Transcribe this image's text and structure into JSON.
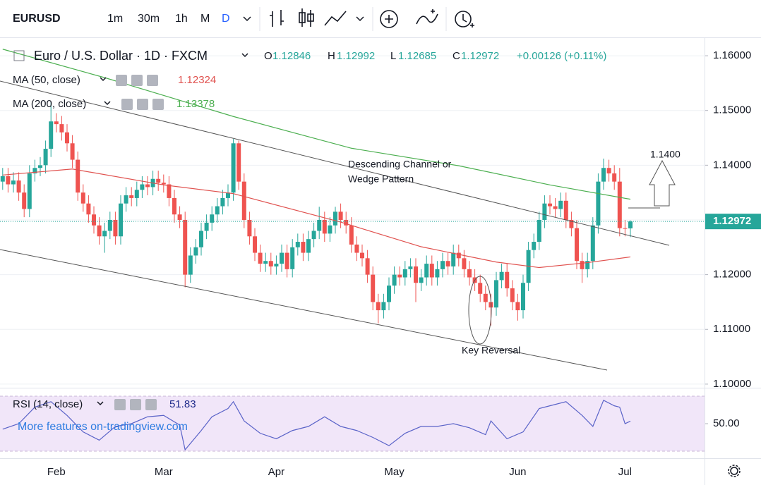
{
  "toolbar": {
    "symbol": "EURUSD",
    "intervals": [
      "1m",
      "30m",
      "1h",
      "M",
      "D"
    ]
  },
  "watermark": "More features on-tradingview.com",
  "chart_data": [
    {
      "type": "candlestick",
      "header": {
        "title": "Euro / U.S. Dollar · 1D · FXCM",
        "ohlc_labels": [
          "O",
          "H",
          "L",
          "C"
        ],
        "change": "+0.00126 (+0.11%)"
      },
      "categories": [
        null,
        null,
        null,
        null,
        null,
        null,
        null,
        null,
        null,
        null,
        "Feb",
        null,
        null,
        null,
        null,
        null,
        null,
        null,
        null,
        null,
        null,
        null,
        null,
        null,
        null,
        null,
        null,
        null,
        null,
        null,
        "Mar",
        null,
        null,
        null,
        null,
        null,
        null,
        null,
        null,
        null,
        null,
        null,
        null,
        null,
        null,
        null,
        null,
        null,
        null,
        null,
        null,
        "Apr",
        null,
        null,
        null,
        null,
        null,
        null,
        null,
        null,
        null,
        null,
        null,
        null,
        null,
        null,
        null,
        null,
        null,
        null,
        null,
        null,
        null,
        "May",
        null,
        null,
        null,
        null,
        null,
        null,
        null,
        null,
        null,
        null,
        null,
        null,
        null,
        null,
        null,
        null,
        null,
        null,
        null,
        null,
        null,
        null,
        "Jun",
        null,
        null,
        null,
        null,
        null,
        null,
        null,
        null,
        null,
        null,
        null,
        null,
        null,
        null,
        null,
        null,
        null,
        null,
        null,
        "Jul",
        null
      ],
      "open": [
        1.137,
        1.138,
        1.1365,
        1.1372,
        1.135,
        1.132,
        1.1385,
        1.1395,
        1.14,
        1.143,
        1.148,
        1.1475,
        1.146,
        1.144,
        1.141,
        1.135,
        1.133,
        1.131,
        1.129,
        1.127,
        1.128,
        1.13,
        1.127,
        1.133,
        1.1345,
        1.134,
        1.1355,
        1.1365,
        1.136,
        1.1375,
        1.1368,
        1.1365,
        1.134,
        1.131,
        1.13,
        1.12,
        1.1235,
        1.125,
        1.128,
        1.1295,
        1.131,
        1.1325,
        1.134,
        1.135,
        1.144,
        1.137,
        1.13,
        1.127,
        1.124,
        1.122,
        1.1225,
        1.1215,
        1.122,
        1.124,
        1.121,
        1.125,
        1.126,
        1.124,
        1.1265,
        1.128,
        1.13,
        1.1275,
        1.129,
        1.1315,
        1.13,
        1.129,
        1.1255,
        1.124,
        1.123,
        1.12,
        1.115,
        1.1135,
        1.115,
        1.118,
        1.12,
        1.1195,
        1.121,
        1.1215,
        1.1185,
        1.1195,
        1.122,
        1.1195,
        1.121,
        1.1225,
        1.1215,
        1.124,
        1.123,
        1.121,
        1.1195,
        1.1185,
        1.1165,
        1.115,
        1.114,
        1.119,
        1.1205,
        1.1175,
        1.115,
        1.1135,
        1.1185,
        1.1245,
        1.126,
        1.13,
        1.133,
        1.1325,
        1.132,
        1.1335,
        1.13,
        1.1285,
        1.1225,
        1.121,
        1.1225,
        1.129,
        1.137,
        1.1395,
        1.1385,
        1.137,
        1.1285,
        1.12846
      ],
      "high": [
        1.1395,
        1.1395,
        1.1387,
        1.1387,
        1.1365,
        1.14,
        1.141,
        1.1415,
        1.1445,
        1.1515,
        1.1495,
        1.149,
        1.1475,
        1.1455,
        1.1425,
        1.1365,
        1.1345,
        1.1325,
        1.1305,
        1.1295,
        1.1315,
        1.1315,
        1.1345,
        1.136,
        1.136,
        1.137,
        1.138,
        1.138,
        1.139,
        1.139,
        1.1383,
        1.138,
        1.1355,
        1.1325,
        1.1315,
        1.125,
        1.1265,
        1.1295,
        1.131,
        1.1325,
        1.134,
        1.1355,
        1.1365,
        1.1448,
        1.1445,
        1.1385,
        1.1315,
        1.1285,
        1.1255,
        1.124,
        1.124,
        1.1235,
        1.1255,
        1.1255,
        1.1265,
        1.1275,
        1.1275,
        1.128,
        1.1295,
        1.1324,
        1.1315,
        1.1305,
        1.1324,
        1.133,
        1.1315,
        1.1305,
        1.127,
        1.1255,
        1.1245,
        1.1215,
        1.1165,
        1.1165,
        1.1195,
        1.1215,
        1.1215,
        1.1225,
        1.123,
        1.123,
        1.121,
        1.1235,
        1.1235,
        1.1225,
        1.124,
        1.124,
        1.1255,
        1.1255,
        1.1245,
        1.1225,
        1.121,
        1.12,
        1.118,
        1.1165,
        1.1205,
        1.122,
        1.122,
        1.119,
        1.1165,
        1.12,
        1.126,
        1.1275,
        1.1315,
        1.1345,
        1.1345,
        1.134,
        1.135,
        1.135,
        1.1315,
        1.13,
        1.124,
        1.124,
        1.1305,
        1.1385,
        1.1412,
        1.141,
        1.14,
        1.1395,
        1.13,
        1.12992
      ],
      "low": [
        1.1355,
        1.135,
        1.135,
        1.1335,
        1.1305,
        1.1305,
        1.137,
        1.138,
        1.1385,
        1.1415,
        1.146,
        1.1445,
        1.1425,
        1.1395,
        1.1335,
        1.1315,
        1.1295,
        1.1275,
        1.1255,
        1.124,
        1.1265,
        1.1255,
        1.1255,
        1.1315,
        1.1325,
        1.1325,
        1.134,
        1.1345,
        1.1345,
        1.1353,
        1.135,
        1.1325,
        1.1295,
        1.1285,
        1.1177,
        1.1185,
        1.122,
        1.1235,
        1.1265,
        1.128,
        1.1295,
        1.131,
        1.1325,
        1.1335,
        1.1355,
        1.1285,
        1.1255,
        1.1225,
        1.1205,
        1.1205,
        1.12,
        1.12,
        1.1205,
        1.1195,
        1.1195,
        1.1235,
        1.1225,
        1.1225,
        1.125,
        1.1265,
        1.126,
        1.126,
        1.1275,
        1.1285,
        1.1275,
        1.124,
        1.1225,
        1.1215,
        1.1185,
        1.1135,
        1.1111,
        1.112,
        1.1135,
        1.1165,
        1.118,
        1.118,
        1.1195,
        1.115,
        1.117,
        1.118,
        1.118,
        1.118,
        1.1195,
        1.12,
        1.12,
        1.1215,
        1.1195,
        1.118,
        1.117,
        1.115,
        1.1135,
        1.1107,
        1.1125,
        1.1175,
        1.116,
        1.1135,
        1.1116,
        1.112,
        1.117,
        1.123,
        1.1245,
        1.1285,
        1.131,
        1.1305,
        1.1305,
        1.1285,
        1.127,
        1.121,
        1.1185,
        1.1195,
        1.121,
        1.1275,
        1.1355,
        1.137,
        1.1355,
        1.127,
        1.127,
        1.12685
      ],
      "close": [
        1.138,
        1.1365,
        1.1372,
        1.135,
        1.132,
        1.1385,
        1.1395,
        1.14,
        1.143,
        1.148,
        1.1475,
        1.146,
        1.144,
        1.141,
        1.135,
        1.133,
        1.131,
        1.129,
        1.127,
        1.128,
        1.13,
        1.127,
        1.133,
        1.1345,
        1.134,
        1.1355,
        1.1365,
        1.136,
        1.1375,
        1.1368,
        1.1365,
        1.134,
        1.131,
        1.13,
        1.12,
        1.1235,
        1.125,
        1.128,
        1.1295,
        1.131,
        1.1325,
        1.134,
        1.135,
        1.144,
        1.137,
        1.13,
        1.127,
        1.124,
        1.122,
        1.1225,
        1.1215,
        1.122,
        1.124,
        1.121,
        1.125,
        1.126,
        1.124,
        1.1265,
        1.128,
        1.13,
        1.1275,
        1.129,
        1.1315,
        1.13,
        1.129,
        1.1255,
        1.124,
        1.123,
        1.12,
        1.115,
        1.1135,
        1.115,
        1.118,
        1.12,
        1.1195,
        1.121,
        1.1215,
        1.1185,
        1.1195,
        1.122,
        1.1195,
        1.121,
        1.1225,
        1.1215,
        1.124,
        1.123,
        1.121,
        1.1195,
        1.1185,
        1.1165,
        1.115,
        1.114,
        1.119,
        1.1205,
        1.1175,
        1.115,
        1.1135,
        1.1185,
        1.1245,
        1.126,
        1.13,
        1.133,
        1.1325,
        1.132,
        1.1335,
        1.13,
        1.1285,
        1.1225,
        1.121,
        1.1225,
        1.129,
        1.137,
        1.1395,
        1.1385,
        1.137,
        1.1285,
        1.12846,
        1.12972
      ],
      "up_color": "#26a69a",
      "down_color": "#ef5350",
      "ma": [
        {
          "name": "MA (50, close)",
          "color": "#e0524f",
          "x": [
            0,
            13,
            30,
            43,
            63,
            78,
            92,
            100,
            109,
            117
          ],
          "values": [
            1.1382,
            1.1393,
            1.1364,
            1.1348,
            1.1296,
            1.1251,
            1.1223,
            1.1213,
            1.1222,
            1.12324
          ]
        },
        {
          "name": "MA (200, close)",
          "color": "#4caf50",
          "x": [
            0,
            19,
            43,
            65,
            85,
            102,
            117
          ],
          "values": [
            1.1612,
            1.156,
            1.1489,
            1.1431,
            1.1399,
            1.1364,
            1.13378
          ]
        }
      ],
      "ylim": [
        1.0996,
        1.1631
      ],
      "yticks": [
        {
          "value": 1.1,
          "label": "1.10000"
        },
        {
          "value": 1.11,
          "label": "1.11000"
        },
        {
          "value": 1.12,
          "label": "1.12000"
        },
        {
          "value": 1.13,
          "label": "1.13000"
        },
        {
          "value": 1.14,
          "label": "1.14000"
        },
        {
          "value": 1.15,
          "label": "1.15000"
        },
        {
          "value": 1.16,
          "label": "1.16000"
        }
      ],
      "grid": true,
      "annotations": [
        "Descending Channel or",
        "Wedge Pattern",
        "1.1400",
        "Key Reversal"
      ]
    },
    {
      "type": "line",
      "title": "RSI (14, close)",
      "color": "#5a63c8",
      "x": [
        0,
        3,
        6,
        9,
        12,
        15,
        18,
        21,
        24,
        27,
        30,
        33,
        34,
        37,
        39,
        42,
        43,
        45,
        48,
        51,
        54,
        57,
        60,
        63,
        66,
        69,
        72,
        75,
        78,
        81,
        84,
        87,
        90,
        91,
        94,
        97,
        100,
        102,
        105,
        108,
        110,
        112,
        114,
        115,
        116,
        117
      ],
      "values": [
        46,
        50,
        62,
        66,
        56,
        44,
        38,
        48,
        50,
        55,
        56,
        49,
        31,
        45,
        55,
        61,
        66,
        52,
        43,
        39,
        45,
        48,
        55,
        48,
        45,
        40,
        34,
        43,
        48,
        48,
        50,
        47,
        42,
        52,
        39,
        44,
        61,
        63,
        66,
        56,
        48,
        67,
        63,
        62,
        50,
        51.83
      ],
      "ylim": [
        25.9,
        74.6
      ],
      "yticks": [
        {
          "value": 50,
          "label": "50.00"
        }
      ],
      "band": [
        30,
        70
      ],
      "band_color": "#f1e6f9"
    }
  ]
}
